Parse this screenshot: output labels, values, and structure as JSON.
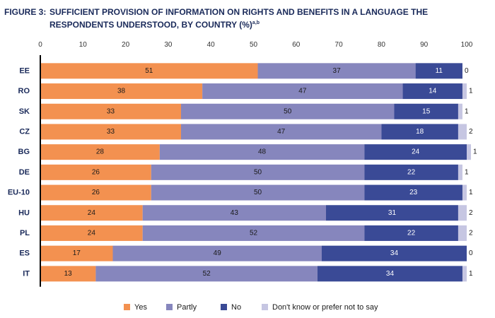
{
  "figure": {
    "label": "FIGURE 3:",
    "title": "SUFFICIENT PROVISION OF INFORMATION ON RIGHTS AND BENEFITS IN A LANGUAGE THE RESPONDENTS UNDERSTOOD, BY COUNTRY (%)",
    "superscript": "a,b"
  },
  "chart_data": {
    "type": "bar",
    "orientation": "horizontal",
    "stacked": true,
    "xlim": [
      0,
      100
    ],
    "xticks": [
      0,
      10,
      20,
      30,
      40,
      50,
      60,
      70,
      80,
      90,
      100
    ],
    "categories": [
      "EE",
      "RO",
      "SK",
      "CZ",
      "BG",
      "DE",
      "EU-10",
      "HU",
      "PL",
      "ES",
      "IT"
    ],
    "series": [
      {
        "name": "Yes",
        "color": "#f39150",
        "label_color": "#1a1a1a",
        "values": [
          51,
          38,
          33,
          33,
          28,
          26,
          26,
          24,
          24,
          17,
          13
        ]
      },
      {
        "name": "Partly",
        "color": "#8686bd",
        "label_color": "#1a1a1a",
        "values": [
          37,
          47,
          50,
          47,
          48,
          50,
          50,
          43,
          52,
          49,
          52
        ]
      },
      {
        "name": "No",
        "color": "#3a4a96",
        "label_color": "#ffffff",
        "values": [
          11,
          14,
          15,
          18,
          24,
          22,
          23,
          31,
          22,
          34,
          34
        ]
      },
      {
        "name": "Don't know or prefer not to say",
        "color": "#c6c6e2",
        "label_color": "#1a1a1a",
        "values": [
          0,
          1,
          1,
          2,
          1,
          1,
          1,
          2,
          2,
          0,
          1
        ]
      }
    ],
    "legend_position": "bottom",
    "grid": false
  }
}
